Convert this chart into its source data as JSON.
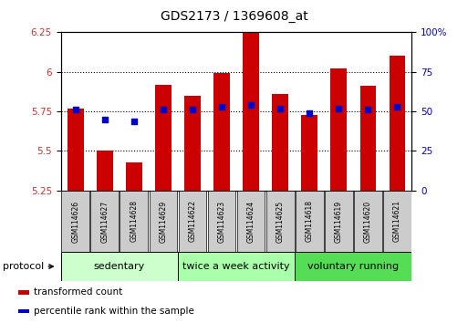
{
  "title": "GDS2173 / 1369608_at",
  "categories": [
    "GSM114626",
    "GSM114627",
    "GSM114628",
    "GSM114629",
    "GSM114622",
    "GSM114623",
    "GSM114624",
    "GSM114625",
    "GSM114618",
    "GSM114619",
    "GSM114620",
    "GSM114621"
  ],
  "bar_values": [
    5.77,
    5.5,
    5.43,
    5.92,
    5.85,
    5.99,
    6.28,
    5.86,
    5.73,
    6.02,
    5.91,
    6.1
  ],
  "percentile_values": [
    51,
    45,
    44,
    51,
    51,
    53,
    54,
    52,
    49,
    52,
    51,
    53
  ],
  "bar_color": "#cc0000",
  "percentile_color": "#0000cc",
  "y_min": 5.25,
  "y_max": 6.25,
  "y_ticks": [
    5.25,
    5.5,
    5.75,
    6.0,
    6.25
  ],
  "y_tick_labels": [
    "5.25",
    "5.5",
    "5.75",
    "6",
    "6.25"
  ],
  "y2_ticks": [
    0,
    25,
    50,
    75,
    100
  ],
  "y2_tick_labels": [
    "0",
    "25",
    "50",
    "75",
    "100%"
  ],
  "groups": [
    {
      "label": "sedentary",
      "start": 0,
      "end": 4,
      "color": "#ccffcc"
    },
    {
      "label": "twice a week activity",
      "start": 4,
      "end": 8,
      "color": "#aaffaa"
    },
    {
      "label": "voluntary running",
      "start": 8,
      "end": 12,
      "color": "#55dd55"
    }
  ],
  "protocol_label": "protocol",
  "legend_items": [
    {
      "label": "transformed count",
      "color": "#cc0000"
    },
    {
      "label": "percentile rank within the sample",
      "color": "#0000cc"
    }
  ],
  "bar_width": 0.55,
  "background_color": "#ffffff",
  "title_fontsize": 10,
  "tick_fontsize": 7.5,
  "cat_fontsize": 5.5,
  "group_fontsize": 8,
  "legend_fontsize": 7.5
}
